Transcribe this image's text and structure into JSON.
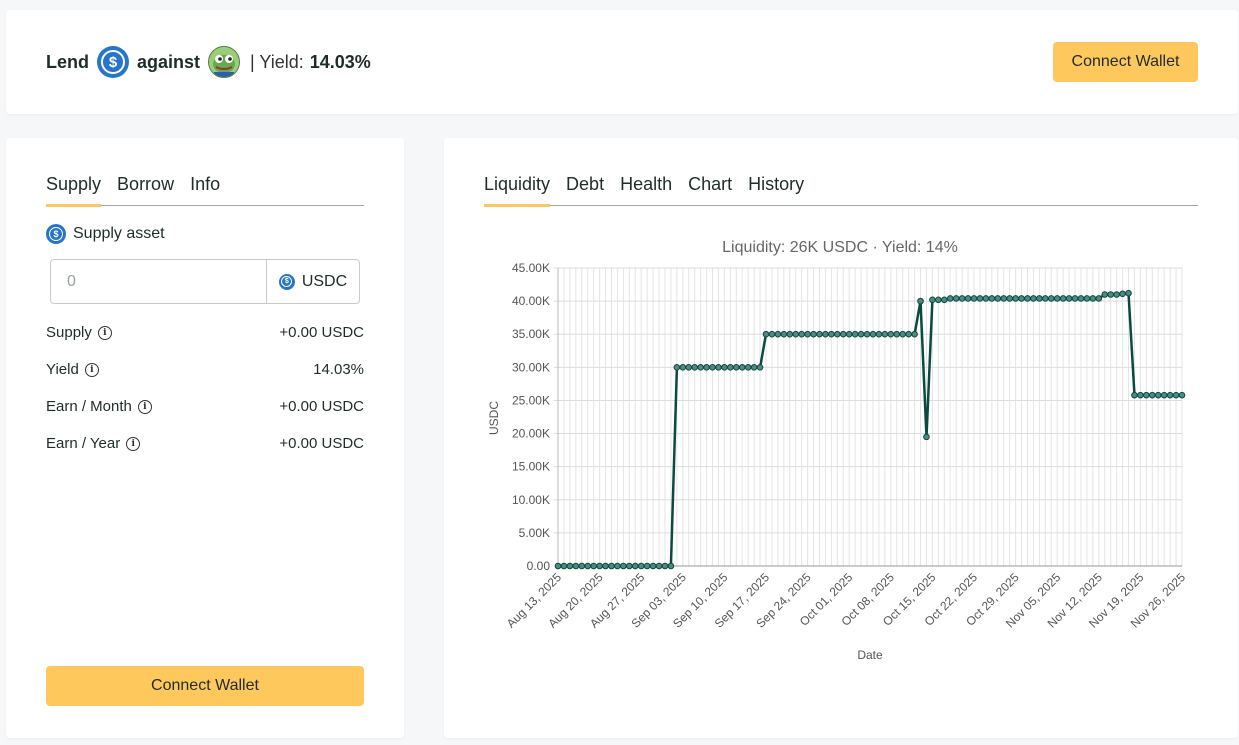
{
  "header": {
    "lend_label": "Lend",
    "against_label": "against",
    "yield_prefix": "| Yield:",
    "yield_value": "14.03%",
    "connect_label": "Connect Wallet"
  },
  "left": {
    "tabs": [
      {
        "label": "Supply",
        "active": true
      },
      {
        "label": "Borrow",
        "active": false
      },
      {
        "label": "Info",
        "active": false
      }
    ],
    "supply_asset_label": "Supply asset",
    "input": {
      "placeholder": "0",
      "asset": "USDC"
    },
    "stats": [
      {
        "label": "Supply",
        "value": "+0.00 USDC"
      },
      {
        "label": "Yield",
        "value": "14.03%"
      },
      {
        "label": "Earn / Month",
        "value": "+0.00 USDC"
      },
      {
        "label": "Earn / Year",
        "value": "+0.00 USDC"
      }
    ],
    "connect_label": "Connect Wallet"
  },
  "right": {
    "tabs": [
      {
        "label": "Liquidity",
        "active": true
      },
      {
        "label": "Debt",
        "active": false
      },
      {
        "label": "Health",
        "active": false
      },
      {
        "label": "Chart",
        "active": false
      },
      {
        "label": "History",
        "active": false
      }
    ]
  },
  "colors": {
    "accent": "#ffc85c",
    "usdc": "#2775ca",
    "line": "#0b4a3f"
  },
  "chart_data": {
    "type": "line",
    "title": "Liquidity: 26K USDC · Yield: 14%",
    "xlabel": "Date",
    "ylabel": "USDC",
    "ylim": [
      0,
      45000
    ],
    "yticks": [
      "0.00",
      "5.00K",
      "10.00K",
      "15.00K",
      "20.00K",
      "25.00K",
      "30.00K",
      "35.00K",
      "40.00K",
      "45.00K"
    ],
    "xticks": [
      "Aug 13, 2025",
      "Aug 20, 2025",
      "Aug 27, 2025",
      "Sep 03, 2025",
      "Sep 10, 2025",
      "Sep 17, 2025",
      "Sep 24, 2025",
      "Oct 01, 2025",
      "Oct 08, 2025",
      "Oct 15, 2025",
      "Oct 22, 2025",
      "Oct 29, 2025",
      "Nov 05, 2025",
      "Nov 12, 2025",
      "Nov 19, 2025",
      "Nov 26, 2025"
    ],
    "x_range": [
      "2025-08-13",
      "2025-11-26"
    ],
    "grid": true,
    "series": [
      {
        "values": [
          [
            "2025-08-13",
            0
          ],
          [
            "2025-08-14",
            0
          ],
          [
            "2025-08-15",
            0
          ],
          [
            "2025-08-16",
            0
          ],
          [
            "2025-08-17",
            0
          ],
          [
            "2025-08-18",
            0
          ],
          [
            "2025-08-19",
            0
          ],
          [
            "2025-08-20",
            0
          ],
          [
            "2025-08-21",
            0
          ],
          [
            "2025-08-22",
            0
          ],
          [
            "2025-08-23",
            0
          ],
          [
            "2025-08-24",
            0
          ],
          [
            "2025-08-25",
            0
          ],
          [
            "2025-08-26",
            0
          ],
          [
            "2025-08-27",
            0
          ],
          [
            "2025-08-28",
            0
          ],
          [
            "2025-08-29",
            0
          ],
          [
            "2025-08-30",
            0
          ],
          [
            "2025-08-31",
            0
          ],
          [
            "2025-09-01",
            0
          ],
          [
            "2025-09-02",
            30000
          ],
          [
            "2025-09-03",
            30000
          ],
          [
            "2025-09-04",
            30000
          ],
          [
            "2025-09-05",
            30000
          ],
          [
            "2025-09-06",
            30000
          ],
          [
            "2025-09-07",
            30000
          ],
          [
            "2025-09-08",
            30000
          ],
          [
            "2025-09-09",
            30000
          ],
          [
            "2025-09-10",
            30000
          ],
          [
            "2025-09-11",
            30000
          ],
          [
            "2025-09-12",
            30000
          ],
          [
            "2025-09-13",
            30000
          ],
          [
            "2025-09-14",
            30000
          ],
          [
            "2025-09-15",
            30000
          ],
          [
            "2025-09-16",
            30000
          ],
          [
            "2025-09-17",
            35000
          ],
          [
            "2025-09-18",
            35000
          ],
          [
            "2025-09-19",
            35000
          ],
          [
            "2025-09-20",
            35000
          ],
          [
            "2025-09-21",
            35000
          ],
          [
            "2025-09-22",
            35000
          ],
          [
            "2025-09-23",
            35000
          ],
          [
            "2025-09-24",
            35000
          ],
          [
            "2025-09-25",
            35000
          ],
          [
            "2025-09-26",
            35000
          ],
          [
            "2025-09-27",
            35000
          ],
          [
            "2025-09-28",
            35000
          ],
          [
            "2025-09-29",
            35000
          ],
          [
            "2025-09-30",
            35000
          ],
          [
            "2025-10-01",
            35000
          ],
          [
            "2025-10-02",
            35000
          ],
          [
            "2025-10-03",
            35000
          ],
          [
            "2025-10-04",
            35000
          ],
          [
            "2025-10-05",
            35000
          ],
          [
            "2025-10-06",
            35000
          ],
          [
            "2025-10-07",
            35000
          ],
          [
            "2025-10-08",
            35000
          ],
          [
            "2025-10-09",
            35000
          ],
          [
            "2025-10-10",
            35000
          ],
          [
            "2025-10-11",
            35000
          ],
          [
            "2025-10-12",
            35000
          ],
          [
            "2025-10-13",
            40000
          ],
          [
            "2025-10-14",
            19500
          ],
          [
            "2025-10-15",
            40200
          ],
          [
            "2025-10-16",
            40200
          ],
          [
            "2025-10-17",
            40200
          ],
          [
            "2025-10-18",
            40400
          ],
          [
            "2025-10-19",
            40400
          ],
          [
            "2025-10-20",
            40400
          ],
          [
            "2025-10-21",
            40400
          ],
          [
            "2025-10-22",
            40400
          ],
          [
            "2025-10-23",
            40400
          ],
          [
            "2025-10-24",
            40400
          ],
          [
            "2025-10-25",
            40400
          ],
          [
            "2025-10-26",
            40400
          ],
          [
            "2025-10-27",
            40400
          ],
          [
            "2025-10-28",
            40400
          ],
          [
            "2025-10-29",
            40400
          ],
          [
            "2025-10-30",
            40400
          ],
          [
            "2025-10-31",
            40400
          ],
          [
            "2025-11-01",
            40400
          ],
          [
            "2025-11-02",
            40400
          ],
          [
            "2025-11-03",
            40400
          ],
          [
            "2025-11-04",
            40400
          ],
          [
            "2025-11-05",
            40400
          ],
          [
            "2025-11-06",
            40400
          ],
          [
            "2025-11-07",
            40400
          ],
          [
            "2025-11-08",
            40400
          ],
          [
            "2025-11-09",
            40400
          ],
          [
            "2025-11-10",
            40400
          ],
          [
            "2025-11-11",
            40400
          ],
          [
            "2025-11-12",
            40400
          ],
          [
            "2025-11-13",
            41000
          ],
          [
            "2025-11-14",
            41000
          ],
          [
            "2025-11-15",
            41000
          ],
          [
            "2025-11-16",
            41100
          ],
          [
            "2025-11-17",
            41200
          ],
          [
            "2025-11-18",
            25800
          ],
          [
            "2025-11-19",
            25800
          ],
          [
            "2025-11-20",
            25800
          ],
          [
            "2025-11-21",
            25800
          ],
          [
            "2025-11-22",
            25800
          ],
          [
            "2025-11-23",
            25800
          ],
          [
            "2025-11-24",
            25800
          ],
          [
            "2025-11-25",
            25800
          ],
          [
            "2025-11-26",
            25800
          ]
        ]
      }
    ]
  }
}
